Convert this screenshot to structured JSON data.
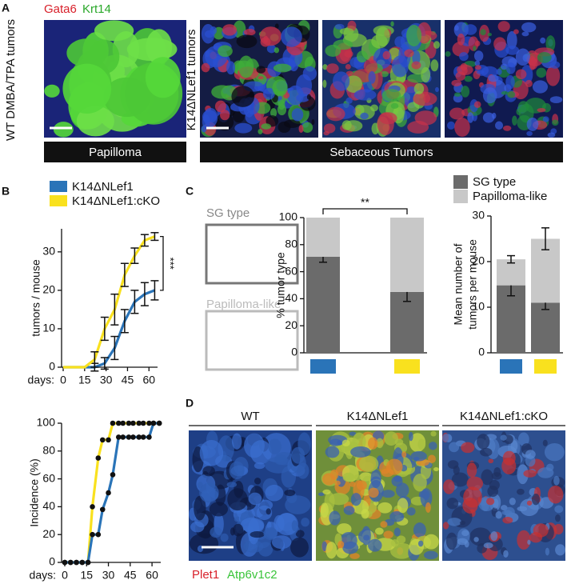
{
  "panels": {
    "a": {
      "label": "A",
      "stain": [
        "Gata6",
        "Krt14"
      ],
      "row_labels": [
        "WT DMBA/TPA tumors",
        "K14ΔNLef1 tumors"
      ],
      "captions": [
        "Papilloma",
        "Sebaceous Tumors"
      ]
    },
    "b": {
      "label": "B"
    },
    "c": {
      "label": "C",
      "image_labels": [
        "SG type",
        "Papilloma-like"
      ]
    },
    "d": {
      "label": "D",
      "columns": [
        "WT",
        "K14ΔNLef1",
        "K14ΔNLef1:cKO"
      ],
      "stain": [
        "Plet1",
        "Atp6v1c2"
      ]
    }
  },
  "chart_data": [
    {
      "type": "line",
      "ylabel": "tumors / mouse",
      "xlabel": "days:",
      "x": [
        0,
        8,
        15,
        22,
        29,
        36,
        43,
        50,
        57,
        64
      ],
      "series": [
        {
          "name": "K14ΔNLef1",
          "color": "#2a74b8",
          "values": [
            0,
            0,
            0,
            0,
            1,
            5,
            12,
            17,
            19,
            20
          ],
          "errors": [
            0,
            0,
            0,
            1,
            1.5,
            3,
            3,
            3,
            3,
            2.5
          ]
        },
        {
          "name": "K14ΔNLef1:cKO",
          "color": "#f9e11e",
          "values": [
            0,
            0,
            0,
            2,
            10,
            15,
            24,
            29,
            33,
            34
          ],
          "errors": [
            0,
            0,
            0,
            2,
            3,
            4,
            3,
            2,
            1.5,
            1
          ]
        }
      ],
      "xlim": [
        0,
        66
      ],
      "ylim": [
        0,
        36
      ],
      "xticks": [
        0,
        15,
        30,
        45,
        60
      ],
      "yticks": [
        0,
        10,
        20,
        30
      ],
      "annotation": "***"
    },
    {
      "type": "line",
      "ylabel": "Incidence (%)",
      "xlabel": "days:",
      "markers": true,
      "x": [
        0,
        4,
        8,
        12,
        16,
        19,
        23,
        26,
        30,
        33,
        37,
        40,
        44,
        47,
        51,
        54,
        58,
        61,
        65
      ],
      "series": [
        {
          "color": "#f9e11e",
          "values": [
            0,
            0,
            0,
            0,
            0,
            40,
            75,
            88,
            88,
            100,
            100,
            100,
            100,
            100,
            100,
            100,
            100,
            100,
            100
          ]
        },
        {
          "color": "#2a74b8",
          "values": [
            0,
            0,
            0,
            0,
            0,
            20,
            20,
            38,
            50,
            63,
            90,
            90,
            90,
            90,
            90,
            90,
            90,
            100,
            100
          ]
        }
      ],
      "xlim": [
        0,
        66
      ],
      "ylim": [
        0,
        100
      ],
      "xticks": [
        0,
        15,
        30,
        45,
        60
      ],
      "yticks": [
        0,
        20,
        40,
        60,
        80,
        100
      ]
    },
    {
      "type": "stacked_bar",
      "ylabel": [
        "% tumor type"
      ],
      "category_colors": [
        "#2a74b8",
        "#f9e11e"
      ],
      "series": [
        {
          "name": "SG type",
          "color": "#6b6b6b",
          "values": [
            71,
            45
          ],
          "errors": [
            4,
            7
          ]
        },
        {
          "name": "Papilloma-like",
          "color": "#c8c8c8",
          "values": [
            29,
            55
          ]
        }
      ],
      "ylim": [
        0,
        100
      ],
      "yticks": [
        0,
        20,
        40,
        60,
        80,
        100
      ],
      "annotation": "**"
    },
    {
      "type": "stacked_bar",
      "ylabel": [
        "Mean number of",
        "tumors per mouse"
      ],
      "category_colors": [
        "#2a74b8",
        "#f9e11e"
      ],
      "series": [
        {
          "color": "#6b6b6b",
          "values": [
            14.8,
            11
          ],
          "errors": [
            2.3,
            1.5
          ]
        },
        {
          "color": "#c8c8c8",
          "values": [
            5.7,
            14
          ],
          "errors": [
            0.8,
            2.4
          ]
        }
      ],
      "ylim": [
        0,
        30
      ],
      "yticks": [
        0,
        10,
        20,
        30
      ]
    }
  ]
}
